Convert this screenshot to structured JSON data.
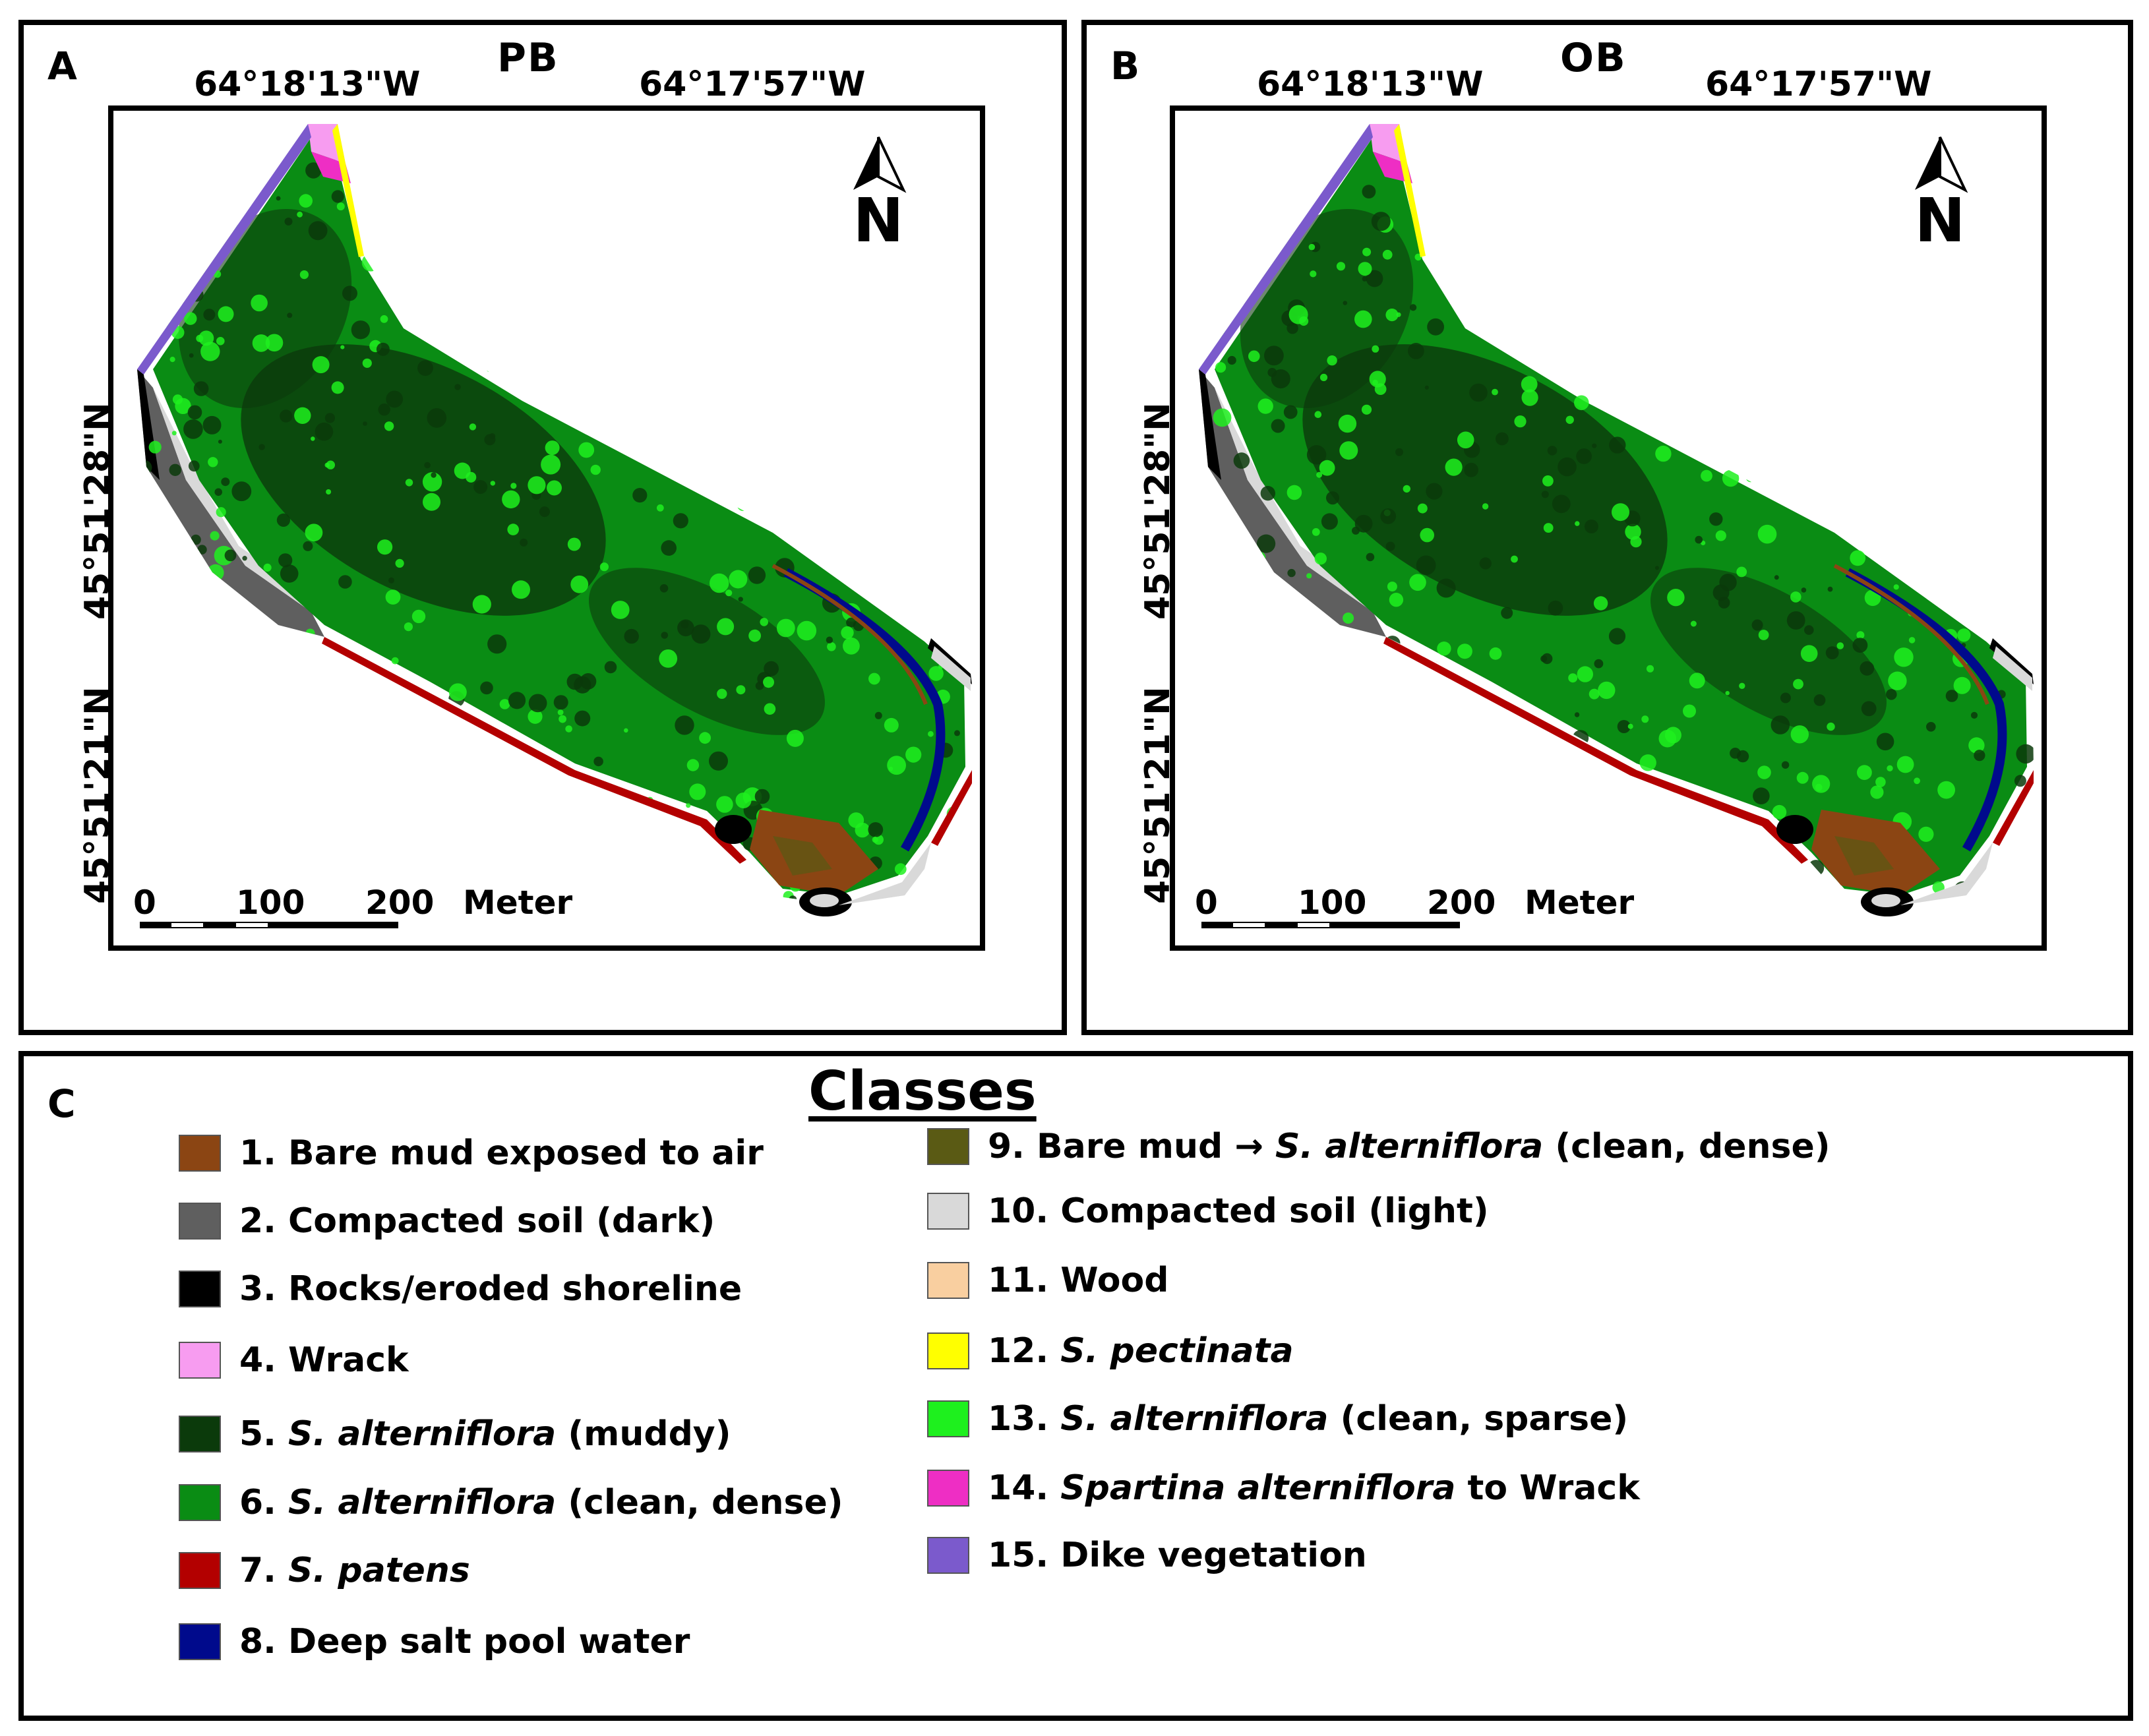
{
  "panels": [
    {
      "letter": "A",
      "title": "PB",
      "lon_left": "64°18'13\"W",
      "lon_right": "64°17'57\"W",
      "lat_upper": "45°51'28\"N",
      "lat_lower": "45°51'21\"N",
      "north_label": "N",
      "scale": {
        "zero": "0",
        "mid": "100",
        "end": "200",
        "unit": "Meter"
      }
    },
    {
      "letter": "B",
      "title": "OB",
      "lon_left": "64°18'13\"W",
      "lon_right": "64°17'57\"W",
      "lat_upper": "45°51'28\"N",
      "lat_lower": "45°51'21\"N",
      "north_label": "N",
      "scale": {
        "zero": "0",
        "mid": "100",
        "end": "200",
        "unit": "Meter"
      }
    }
  ],
  "legend": {
    "letter": "C",
    "title": "Classes",
    "items": [
      {
        "num": "1.",
        "parts": [
          {
            "t": "Bare mud exposed to air",
            "i": false
          }
        ],
        "color": "#8B4513"
      },
      {
        "num": "2.",
        "parts": [
          {
            "t": "Compacted soil (dark)",
            "i": false
          }
        ],
        "color": "#5f5f5f"
      },
      {
        "num": "3.",
        "parts": [
          {
            "t": "Rocks/eroded shoreline",
            "i": false
          }
        ],
        "color": "#000000"
      },
      {
        "num": "4.",
        "parts": [
          {
            "t": "Wrack",
            "i": false
          }
        ],
        "color": "#f79cf0"
      },
      {
        "num": "5.",
        "parts": [
          {
            "t": "S. alterniflora",
            "i": true
          },
          {
            "t": " (muddy)",
            "i": false
          }
        ],
        "color": "#0b3a0b"
      },
      {
        "num": "6.",
        "parts": [
          {
            "t": "S. alterniflora",
            "i": true
          },
          {
            "t": " (clean, dense)",
            "i": false
          }
        ],
        "color": "#0a8c14"
      },
      {
        "num": "7.",
        "parts": [
          {
            "t": "S. patens",
            "i": true
          }
        ],
        "color": "#b30000"
      },
      {
        "num": "8.",
        "parts": [
          {
            "t": "Deep salt pool water",
            "i": false
          }
        ],
        "color": "#000a8c"
      },
      {
        "num": "9.",
        "parts": [
          {
            "t": "Bare mud → ",
            "i": false
          },
          {
            "t": "S. alterniflora",
            "i": true
          },
          {
            "t": " (clean, dense)",
            "i": false
          }
        ],
        "color": "#5a5a14"
      },
      {
        "num": "10.",
        "parts": [
          {
            "t": "Compacted soil (light)",
            "i": false
          }
        ],
        "color": "#d9d9d9"
      },
      {
        "num": "11.",
        "parts": [
          {
            "t": "Wood",
            "i": false
          }
        ],
        "color": "#f9cfa0"
      },
      {
        "num": "12.",
        "parts": [
          {
            "t": "S. pectinata",
            "i": true
          }
        ],
        "color": "#ffff00"
      },
      {
        "num": "13.",
        "parts": [
          {
            "t": "S. alterniflora",
            "i": true
          },
          {
            "t": " (clean, sparse)",
            "i": false
          }
        ],
        "color": "#1ef01e"
      },
      {
        "num": "14.",
        "parts": [
          {
            "t": "Spartina alterniflora",
            "i": true
          },
          {
            "t": " to Wrack",
            "i": false
          }
        ],
        "color": "#ee2ec4"
      },
      {
        "num": "15.",
        "parts": [
          {
            "t": "Dike vegetation",
            "i": false
          }
        ],
        "color": "#7b5acc"
      }
    ]
  }
}
